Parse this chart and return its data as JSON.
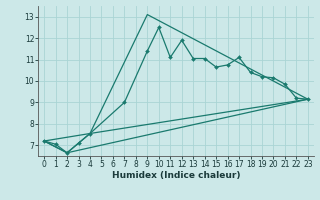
{
  "xlabel": "Humidex (Indice chaleur)",
  "xlim": [
    -0.5,
    23.5
  ],
  "ylim": [
    6.5,
    13.5
  ],
  "yticks": [
    7,
    8,
    9,
    10,
    11,
    12,
    13
  ],
  "xticks": [
    0,
    1,
    2,
    3,
    4,
    5,
    6,
    7,
    8,
    9,
    10,
    11,
    12,
    13,
    14,
    15,
    16,
    17,
    18,
    19,
    20,
    21,
    22,
    23
  ],
  "bg_color": "#cce8e8",
  "grid_color": "#aad4d4",
  "line_color": "#1a7a6e",
  "main_line": {
    "x": [
      0,
      1,
      2,
      3,
      4,
      7,
      9,
      10,
      11,
      12,
      13,
      14,
      15,
      16,
      17,
      18,
      19,
      20,
      21,
      22,
      23
    ],
    "y": [
      7.2,
      7.05,
      6.65,
      7.1,
      7.55,
      9.0,
      11.4,
      12.5,
      11.1,
      11.9,
      11.05,
      11.05,
      10.65,
      10.75,
      11.1,
      10.4,
      10.2,
      10.15,
      9.85,
      9.2,
      9.15
    ]
  },
  "triangle_line": {
    "x": [
      0,
      2,
      3,
      4,
      9,
      23
    ],
    "y": [
      7.2,
      6.65,
      7.1,
      7.55,
      13.1,
      9.15
    ]
  },
  "baseline1": {
    "x": [
      0,
      4,
      23
    ],
    "y": [
      7.2,
      7.55,
      9.15
    ]
  },
  "baseline2": {
    "x": [
      0,
      2,
      23
    ],
    "y": [
      7.2,
      6.65,
      9.15
    ]
  }
}
